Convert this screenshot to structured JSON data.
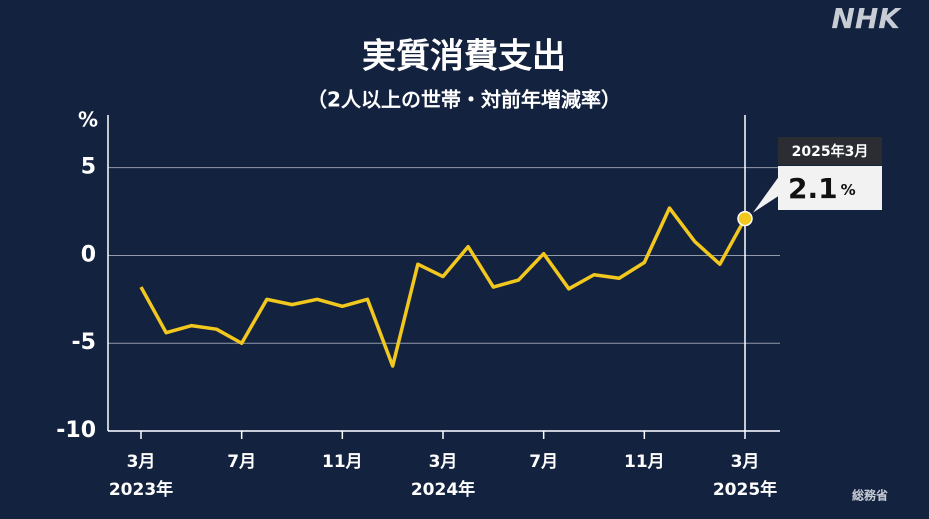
{
  "logo": "NHK",
  "source": "総務省",
  "chart_data": {
    "type": "line",
    "title": "実質消費支出",
    "subtitle": "（2人以上の世帯・対前年増減率）",
    "y_label": "%",
    "categories": [
      "3月",
      null,
      null,
      null,
      "7月",
      null,
      null,
      null,
      "11月",
      null,
      null,
      null,
      "3月",
      null,
      null,
      null,
      "7月",
      null,
      null,
      null,
      "11月",
      null,
      null,
      null,
      "3月"
    ],
    "category_years": [
      "2023年",
      null,
      null,
      null,
      null,
      null,
      null,
      null,
      null,
      null,
      null,
      null,
      "2024年",
      null,
      null,
      null,
      null,
      null,
      null,
      null,
      null,
      null,
      null,
      null,
      "2025年"
    ],
    "values": [
      -1.8,
      -4.4,
      -4.0,
      -4.2,
      -5.0,
      -2.5,
      -2.8,
      -2.5,
      -2.9,
      -2.5,
      -6.3,
      -0.5,
      -1.2,
      0.5,
      -1.8,
      -1.4,
      0.1,
      -1.9,
      -1.1,
      -1.3,
      -0.4,
      2.7,
      0.8,
      -0.5,
      2.1
    ],
    "color": "#f2c81e",
    "ylim": [
      -10,
      8
    ],
    "yticks": [
      -10,
      -5,
      0,
      5
    ],
    "grid": true,
    "annotation": {
      "date": "2025年3月"
    }
  }
}
